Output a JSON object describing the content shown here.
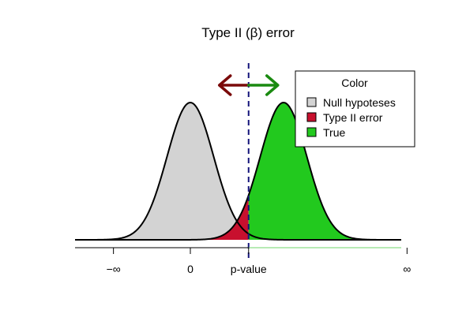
{
  "chart_data": {
    "type": "area",
    "title": "Type II (β) error",
    "xlabel": "",
    "ylabel": "",
    "x_range": [
      -4,
      9.6
    ],
    "y_range": [
      0,
      0.4
    ],
    "ticks": [
      {
        "value": -3.3,
        "label": "−∞"
      },
      {
        "value": 0,
        "label": "0"
      },
      {
        "value": 2.5,
        "label": "p-value"
      },
      {
        "value": 9.3,
        "label": "∞"
      }
    ],
    "threshold": 2.5,
    "series": [
      {
        "name": "Null hypoteses",
        "mean": 0,
        "sd": 1,
        "color": "#d3d3d3"
      },
      {
        "name": "Type II error",
        "mean": 4,
        "sd": 1,
        "region": "x < p-value",
        "color": "#c8102e"
      },
      {
        "name": "True",
        "mean": 4,
        "sd": 1,
        "region": "x >= p-value",
        "color": "#22c91e"
      }
    ],
    "legend": {
      "title": "Color",
      "placement": "top-right",
      "entries": [
        "Null hypoteses",
        "Type II error",
        "True"
      ]
    },
    "arrows": [
      {
        "direction": "left",
        "color": "#7a0a0a"
      },
      {
        "direction": "right",
        "color": "#1a8a10"
      }
    ],
    "grid": false
  }
}
